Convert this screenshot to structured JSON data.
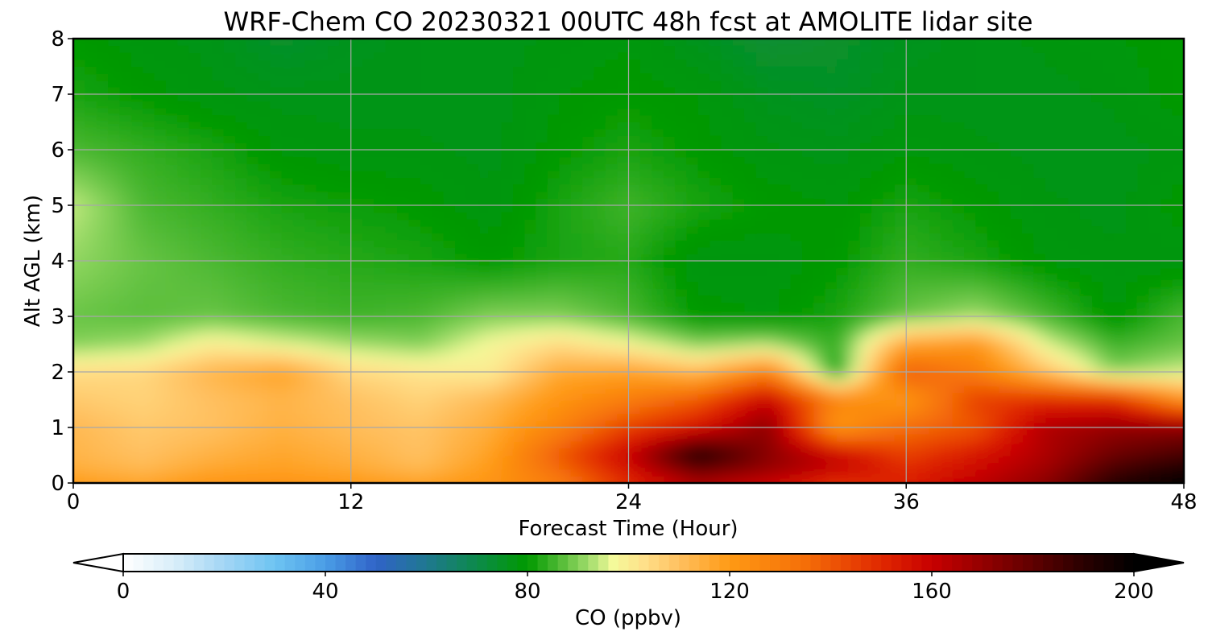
{
  "chart_data": {
    "type": "heatmap",
    "title": "WRF-Chem CO  20230321 00UTC 48h fcst at AMOLITE lidar site",
    "xlabel": "Forecast Time (Hour)",
    "ylabel": "Alt AGL (km)",
    "xlim": [
      0,
      48
    ],
    "ylim": [
      0,
      8
    ],
    "x_ticks": [
      "0",
      "12",
      "24",
      "36",
      "48"
    ],
    "y_ticks": [
      "0",
      "1",
      "2",
      "3",
      "4",
      "5",
      "6",
      "7",
      "8"
    ],
    "grid": true,
    "x": [
      0,
      3,
      6,
      9,
      12,
      15,
      18,
      21,
      24,
      27,
      30,
      33,
      36,
      39,
      42,
      45,
      48
    ],
    "y": [
      0,
      0.25,
      0.5,
      1,
      1.5,
      2,
      2.5,
      3,
      4,
      5,
      6,
      7,
      8
    ],
    "z": [
      [
        120,
        118,
        122,
        123,
        121,
        119,
        122,
        130,
        150,
        165,
        158,
        148,
        152,
        162,
        172,
        192,
        200
      ],
      [
        115,
        112,
        117,
        118,
        116,
        112,
        120,
        135,
        155,
        178,
        170,
        160,
        150,
        158,
        168,
        185,
        195
      ],
      [
        113,
        110,
        114,
        117,
        114,
        110,
        118,
        140,
        160,
        195,
        172,
        160,
        145,
        155,
        165,
        178,
        185
      ],
      [
        112,
        108,
        110,
        114,
        111,
        109,
        115,
        128,
        145,
        155,
        172,
        120,
        135,
        140,
        165,
        170,
        172
      ],
      [
        108,
        106,
        110,
        113,
        110,
        106,
        112,
        122,
        130,
        140,
        160,
        128,
        120,
        145,
        150,
        150,
        122
      ],
      [
        104,
        105,
        113,
        118,
        105,
        102,
        100,
        116,
        118,
        112,
        128,
        80,
        140,
        130,
        110,
        90,
        95
      ],
      [
        90,
        92,
        100,
        96,
        92,
        90,
        98,
        104,
        98,
        90,
        92,
        84,
        118,
        122,
        96,
        85,
        88
      ],
      [
        88,
        87,
        88,
        86,
        85,
        86,
        90,
        90,
        86,
        80,
        79,
        82,
        88,
        92,
        86,
        79,
        86
      ],
      [
        91,
        88,
        86,
        84,
        83,
        82,
        80,
        82,
        83,
        78,
        78,
        80,
        84,
        82,
        79,
        78,
        78
      ],
      [
        94,
        86,
        84,
        82,
        81,
        80,
        78,
        82,
        85,
        82,
        80,
        79,
        82,
        80,
        78,
        77,
        80
      ],
      [
        86,
        84,
        82,
        79,
        78,
        78,
        77,
        80,
        82,
        80,
        78,
        77,
        79,
        78,
        77,
        77,
        78
      ],
      [
        82,
        80,
        78,
        77,
        77,
        77,
        77,
        79,
        80,
        79,
        76,
        75,
        77,
        77,
        77,
        78,
        80
      ],
      [
        80,
        78,
        77,
        74,
        76,
        77,
        77,
        78,
        79,
        76,
        73,
        74,
        76,
        77,
        78,
        79,
        80
      ]
    ],
    "colorbar": {
      "label": "CO  (ppbv)",
      "min": 0,
      "max": 200,
      "ticks": [
        "0",
        "40",
        "80",
        "120",
        "160",
        "200"
      ],
      "extend": "both",
      "orientation": "horizontal",
      "stops": [
        {
          "v": 0,
          "c": "#ffffff"
        },
        {
          "v": 10,
          "c": "#d9eef9"
        },
        {
          "v": 20,
          "c": "#a3d6f5"
        },
        {
          "v": 30,
          "c": "#6ec4f2"
        },
        {
          "v": 40,
          "c": "#4a9de6"
        },
        {
          "v": 50,
          "c": "#3063c8"
        },
        {
          "v": 60,
          "c": "#1f7890"
        },
        {
          "v": 70,
          "c": "#0c8a4a"
        },
        {
          "v": 80,
          "c": "#009900"
        },
        {
          "v": 86,
          "c": "#4cb832"
        },
        {
          "v": 92,
          "c": "#9fdc6a"
        },
        {
          "v": 97,
          "c": "#f4fa9a"
        },
        {
          "v": 103,
          "c": "#ffe08a"
        },
        {
          "v": 110,
          "c": "#ffc060"
        },
        {
          "v": 120,
          "c": "#ff9a14"
        },
        {
          "v": 135,
          "c": "#f56e08"
        },
        {
          "v": 150,
          "c": "#e02800"
        },
        {
          "v": 160,
          "c": "#c80000"
        },
        {
          "v": 175,
          "c": "#7a0000"
        },
        {
          "v": 190,
          "c": "#2a0000"
        },
        {
          "v": 200,
          "c": "#000000"
        }
      ]
    }
  }
}
